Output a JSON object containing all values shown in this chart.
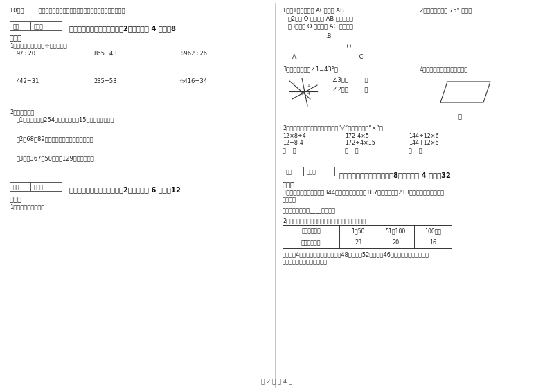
{
  "bg_color": "#ffffff",
  "text_color": "#333333",
  "page_footer": "第 2 页 共 4 页",
  "left_col": {
    "q10": "10．（        ）在一道算式中添减括号，可以改变这道题的运算顺序。",
    "section4_title": "四、看清题目，细心计算（共2小题，每题 4 分，共8",
    "section4_cont": "分）。",
    "q4_1": "1．用竖式计算。（带☆的要验算）",
    "calc1": [
      "97÷20",
      "865÷43",
      "☆962÷26"
    ],
    "calc2": [
      "442÷31",
      "235÷53",
      "☆416÷34"
    ],
    "q4_2": "2．列式计算。",
    "q4_2_1": "（1）已知甲数是254，乙数是甲数的15倍，乙数是多少？",
    "q4_2_2": "（2）68与89的和乘以他们的差，积是多少？",
    "q4_2_3": "（3）比367的50倍，多129的数是多少？",
    "section5_title": "五、认真思考，综合能力（共2小题，每题 6 分，共12",
    "section5_cont": "分）。",
    "q5_1": "1．画一画，填一填。"
  },
  "right_col": {
    "q1_title": "1．（1）画出直线 AC，射线 AB",
    "q1_2": "2．用量角器画一 75° 的角。",
    "q1_sub2": "   （2）过 O 点画射线 AB 的平行线。",
    "q1_sub3": "   （3）再过 O 点画射线 AC 的重线。",
    "point_B": ".B",
    "point_O": ".O",
    "point_A": "A.",
    "point_C": ".C",
    "q3_title": "3．下图中，已知∠1=43°，",
    "q4_title": "4．画出平行四边形底上的高。",
    "angle3": "∠3＝（         ）",
    "angle2": "∠2＝（         ）",
    "bottom_label": "底",
    "q2_title": "2．下面每组算式运算顺序一样的画“√”，不一样的画“×”。",
    "q2_row1": [
      "12×8÷4",
      "172-4×5",
      "144÷12×6"
    ],
    "q2_row2": [
      "12÷8-4",
      "172÷4×15",
      "144+12×6"
    ],
    "q2_row3": [
      "（    ）",
      "（    ）",
      "（    ）"
    ],
    "section6_title": "六、应用知识，解决问题（共8小题，每题 4 分，共32",
    "section6_cont": "分）。",
    "q6_1": "1．海豚馆第一天卖出门票344张，第二天上午卖出187张，下午卖出213张，两天一共卖出多少",
    "q6_1b": "张门票？",
    "q6_ans": "答：两天一共卖出____张门票。",
    "q6_2": "2．家一起去游玩，兴庆公园的游园票价规定如下表：",
    "table_headers": [
      "购票人数／人",
      "1～50",
      "51～100",
      "100以上"
    ],
    "table_row": [
      "每人票价／人",
      "23",
      "20",
      "16"
    ],
    "q6_3a": "红星小学4年级学生去公园游玩，一班48人，二班52人，三班46人，为了节约费用，三个",
    "q6_3b": "班合起来购票，共需多少元？"
  }
}
